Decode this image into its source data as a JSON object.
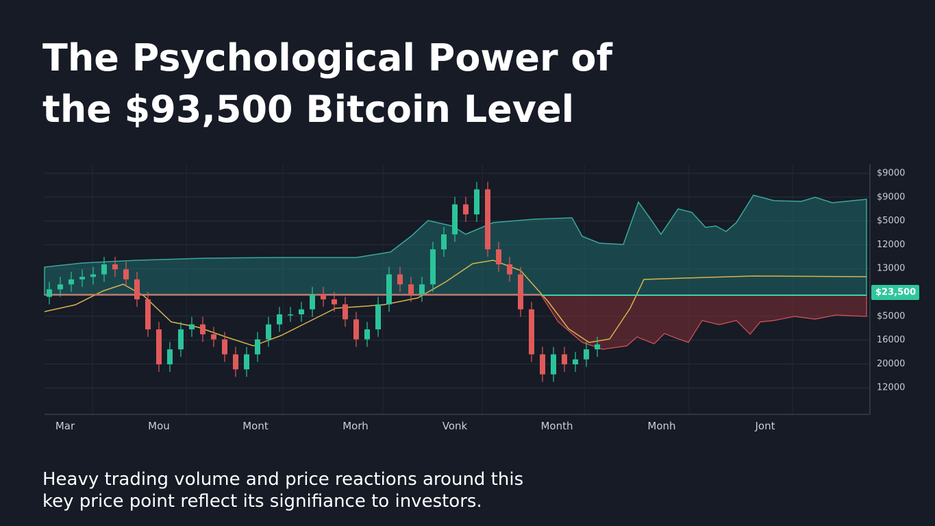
{
  "title_lines": [
    "The Psychological Power of",
    "the $93,500 Bitcoin Level"
  ],
  "caption_lines": [
    "Heavy trading volume and price reactions around this",
    "key price point reflect its signifiance to investors."
  ],
  "chart_data": {
    "type": "candlestick",
    "ylim": [
      0,
      100
    ],
    "x_axis_labels": [
      "Mar",
      "Mou",
      "Mont",
      "Morh",
      "Vonk",
      "Month",
      "Monh",
      "Jont"
    ],
    "y_axis_labels": [
      "$9000",
      "$9000",
      "$5000",
      "12000",
      "13000",
      "$23,500",
      "$5000",
      "16000",
      "20000",
      "12000"
    ],
    "highlight_label": 5,
    "up_color": "#2bc49a",
    "down_color": "#e05a5a",
    "grid": true,
    "open": [
      47,
      50,
      52,
      54,
      55,
      56,
      60,
      58,
      54,
      46,
      34,
      20,
      26,
      34,
      36,
      32,
      30,
      24,
      18,
      24,
      30,
      36,
      40,
      40,
      42,
      48,
      46,
      44,
      38,
      30,
      34,
      44,
      56,
      52,
      48,
      52,
      66,
      72,
      84,
      80,
      90,
      66,
      60,
      56,
      42,
      24,
      16,
      24,
      20,
      22,
      26
    ],
    "high": [
      53,
      55,
      57,
      58,
      59,
      63,
      63,
      61,
      57,
      49,
      37,
      29,
      37,
      39,
      39,
      35,
      33,
      27,
      27,
      33,
      39,
      43,
      43,
      45,
      51,
      51,
      49,
      47,
      41,
      37,
      47,
      59,
      59,
      55,
      55,
      69,
      75,
      87,
      87,
      93,
      93,
      69,
      63,
      59,
      45,
      27,
      27,
      27,
      25,
      29,
      31
    ],
    "low": [
      44,
      47,
      49,
      51,
      52,
      53,
      55,
      51,
      43,
      31,
      17,
      17,
      23,
      31,
      29,
      27,
      21,
      15,
      15,
      21,
      27,
      33,
      37,
      37,
      39,
      43,
      41,
      35,
      27,
      27,
      31,
      41,
      49,
      45,
      45,
      49,
      63,
      69,
      77,
      77,
      63,
      57,
      53,
      39,
      21,
      13,
      13,
      17,
      17,
      19,
      23
    ],
    "close": [
      50,
      52,
      54,
      55,
      56,
      60,
      58,
      54,
      46,
      34,
      20,
      26,
      34,
      36,
      32,
      30,
      24,
      18,
      24,
      30,
      36,
      40,
      40,
      42,
      48,
      46,
      44,
      38,
      30,
      34,
      44,
      56,
      52,
      48,
      52,
      66,
      72,
      84,
      80,
      90,
      66,
      60,
      56,
      42,
      24,
      16,
      24,
      20,
      22,
      26,
      28
    ]
  }
}
